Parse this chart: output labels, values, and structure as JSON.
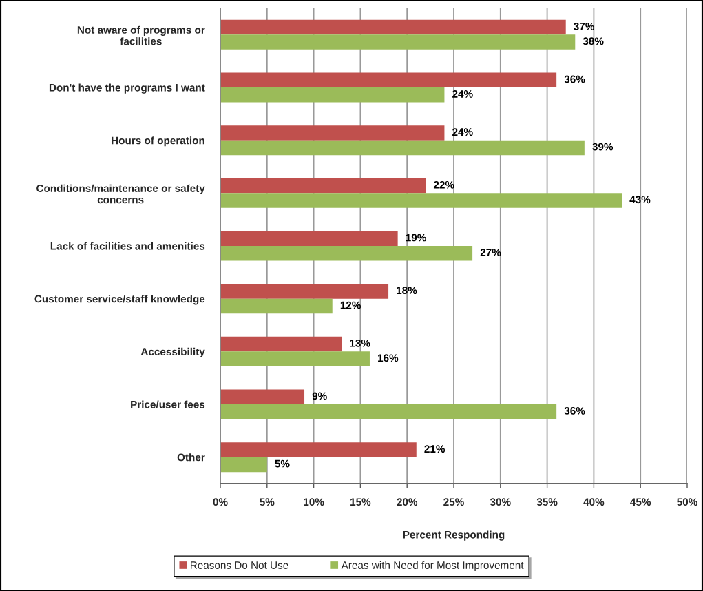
{
  "chart_data": {
    "type": "bar",
    "orientation": "horizontal",
    "xlabel": "Percent Responding",
    "categories": [
      "Not aware of programs or\nfacilities",
      "Don't have the programs I want",
      "Hours of operation",
      "Conditions/maintenance or safety\nconcerns",
      "Lack of facilities and amenities",
      "Customer service/staff knowledge",
      "Accessibility",
      "Price/user fees",
      "Other"
    ],
    "series": [
      {
        "name": "Reasons Do Not Use",
        "color": "#c0504d",
        "values": [
          37,
          36,
          24,
          22,
          19,
          18,
          13,
          9,
          21
        ],
        "value_labels": [
          "37%",
          "36%",
          "24%",
          "22%",
          "19%",
          "18%",
          "13%",
          "9%",
          "21%"
        ]
      },
      {
        "name": "Areas with Need for Most Improvement",
        "color": "#9bbb59",
        "values": [
          38,
          24,
          39,
          43,
          27,
          12,
          16,
          36,
          5
        ],
        "value_labels": [
          "38%",
          "24%",
          "39%",
          "43%",
          "27%",
          "12%",
          "16%",
          "36%",
          "5%"
        ]
      }
    ],
    "xlim": [
      0,
      50
    ],
    "xticks": [
      {
        "value": 0,
        "label": "0%"
      },
      {
        "value": 5,
        "label": "5%"
      },
      {
        "value": 10,
        "label": "10%"
      },
      {
        "value": 15,
        "label": "15%"
      },
      {
        "value": 20,
        "label": "20%"
      },
      {
        "value": 25,
        "label": "25%"
      },
      {
        "value": 30,
        "label": "30%"
      },
      {
        "value": 35,
        "label": "35%"
      },
      {
        "value": 40,
        "label": "40%"
      },
      {
        "value": 45,
        "label": "45%"
      },
      {
        "value": 50,
        "label": "50%"
      }
    ],
    "grid": "x",
    "legend": "bottom"
  }
}
